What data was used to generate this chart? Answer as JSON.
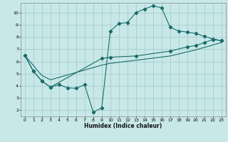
{
  "xlabel": "Humidex (Indice chaleur)",
  "bg_color": "#c8e8e8",
  "grid_color": "#a0c8c8",
  "line_color": "#1a6b6b",
  "xlim": [
    -0.5,
    23.5
  ],
  "ylim": [
    1.5,
    10.8
  ],
  "xticks": [
    0,
    1,
    2,
    3,
    4,
    5,
    6,
    7,
    8,
    9,
    10,
    11,
    12,
    13,
    14,
    15,
    16,
    17,
    18,
    19,
    20,
    21,
    22,
    23
  ],
  "yticks": [
    2,
    3,
    4,
    5,
    6,
    7,
    8,
    9,
    10
  ],
  "line1_x": [
    0,
    1,
    2,
    3,
    4,
    5,
    6,
    7,
    8,
    9,
    10,
    11,
    12,
    13,
    14,
    15,
    16,
    17,
    18,
    19,
    20,
    21,
    22,
    23
  ],
  "line1_y": [
    6.5,
    5.2,
    4.4,
    3.9,
    4.1,
    3.85,
    3.8,
    4.1,
    1.85,
    2.2,
    8.5,
    9.1,
    9.2,
    10.0,
    10.3,
    10.55,
    10.4,
    8.8,
    8.5,
    8.4,
    8.3,
    8.05,
    7.85,
    7.7
  ],
  "line2_x": [
    0,
    1,
    2,
    3,
    9,
    10,
    13,
    17,
    19,
    20,
    21,
    22,
    23
  ],
  "line2_y": [
    6.5,
    5.2,
    4.4,
    3.9,
    6.25,
    6.35,
    6.45,
    6.85,
    7.2,
    7.3,
    7.55,
    7.8,
    7.7
  ],
  "line3_x": [
    0,
    2,
    3,
    9,
    10,
    13,
    17,
    20,
    23
  ],
  "line3_y": [
    6.5,
    4.85,
    4.5,
    5.7,
    5.85,
    6.1,
    6.45,
    6.95,
    7.55
  ]
}
